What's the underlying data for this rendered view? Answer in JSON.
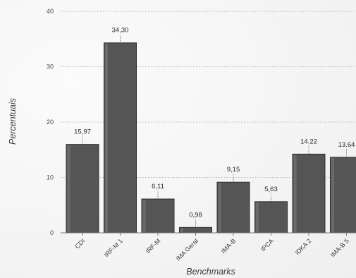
{
  "chart_data": {
    "type": "bar",
    "title": "",
    "xlabel": "Benchmarks",
    "ylabel": "Percentuais",
    "categories": [
      "CDI",
      "IRF-M 1",
      "IRF-M",
      "IMA Geral",
      "IMA-B",
      "IPCA",
      "IDKA 2",
      "IMA-B 5"
    ],
    "values": [
      15.97,
      34.3,
      6.11,
      0.98,
      9.15,
      5.63,
      14.22,
      13.64
    ],
    "data_labels": [
      "15,97",
      "34,30",
      "6,11",
      "0,98",
      "9,15",
      "5,63",
      "14.22",
      "13.64"
    ],
    "yticks": [
      "0",
      "10",
      "20",
      "30",
      "40"
    ],
    "ylim": [
      0,
      40
    ],
    "grid": true,
    "legend": "none",
    "colors": {
      "bar": "#555555",
      "bar_edge": "#2f2f2f",
      "grid": "#9a9a9a"
    }
  }
}
